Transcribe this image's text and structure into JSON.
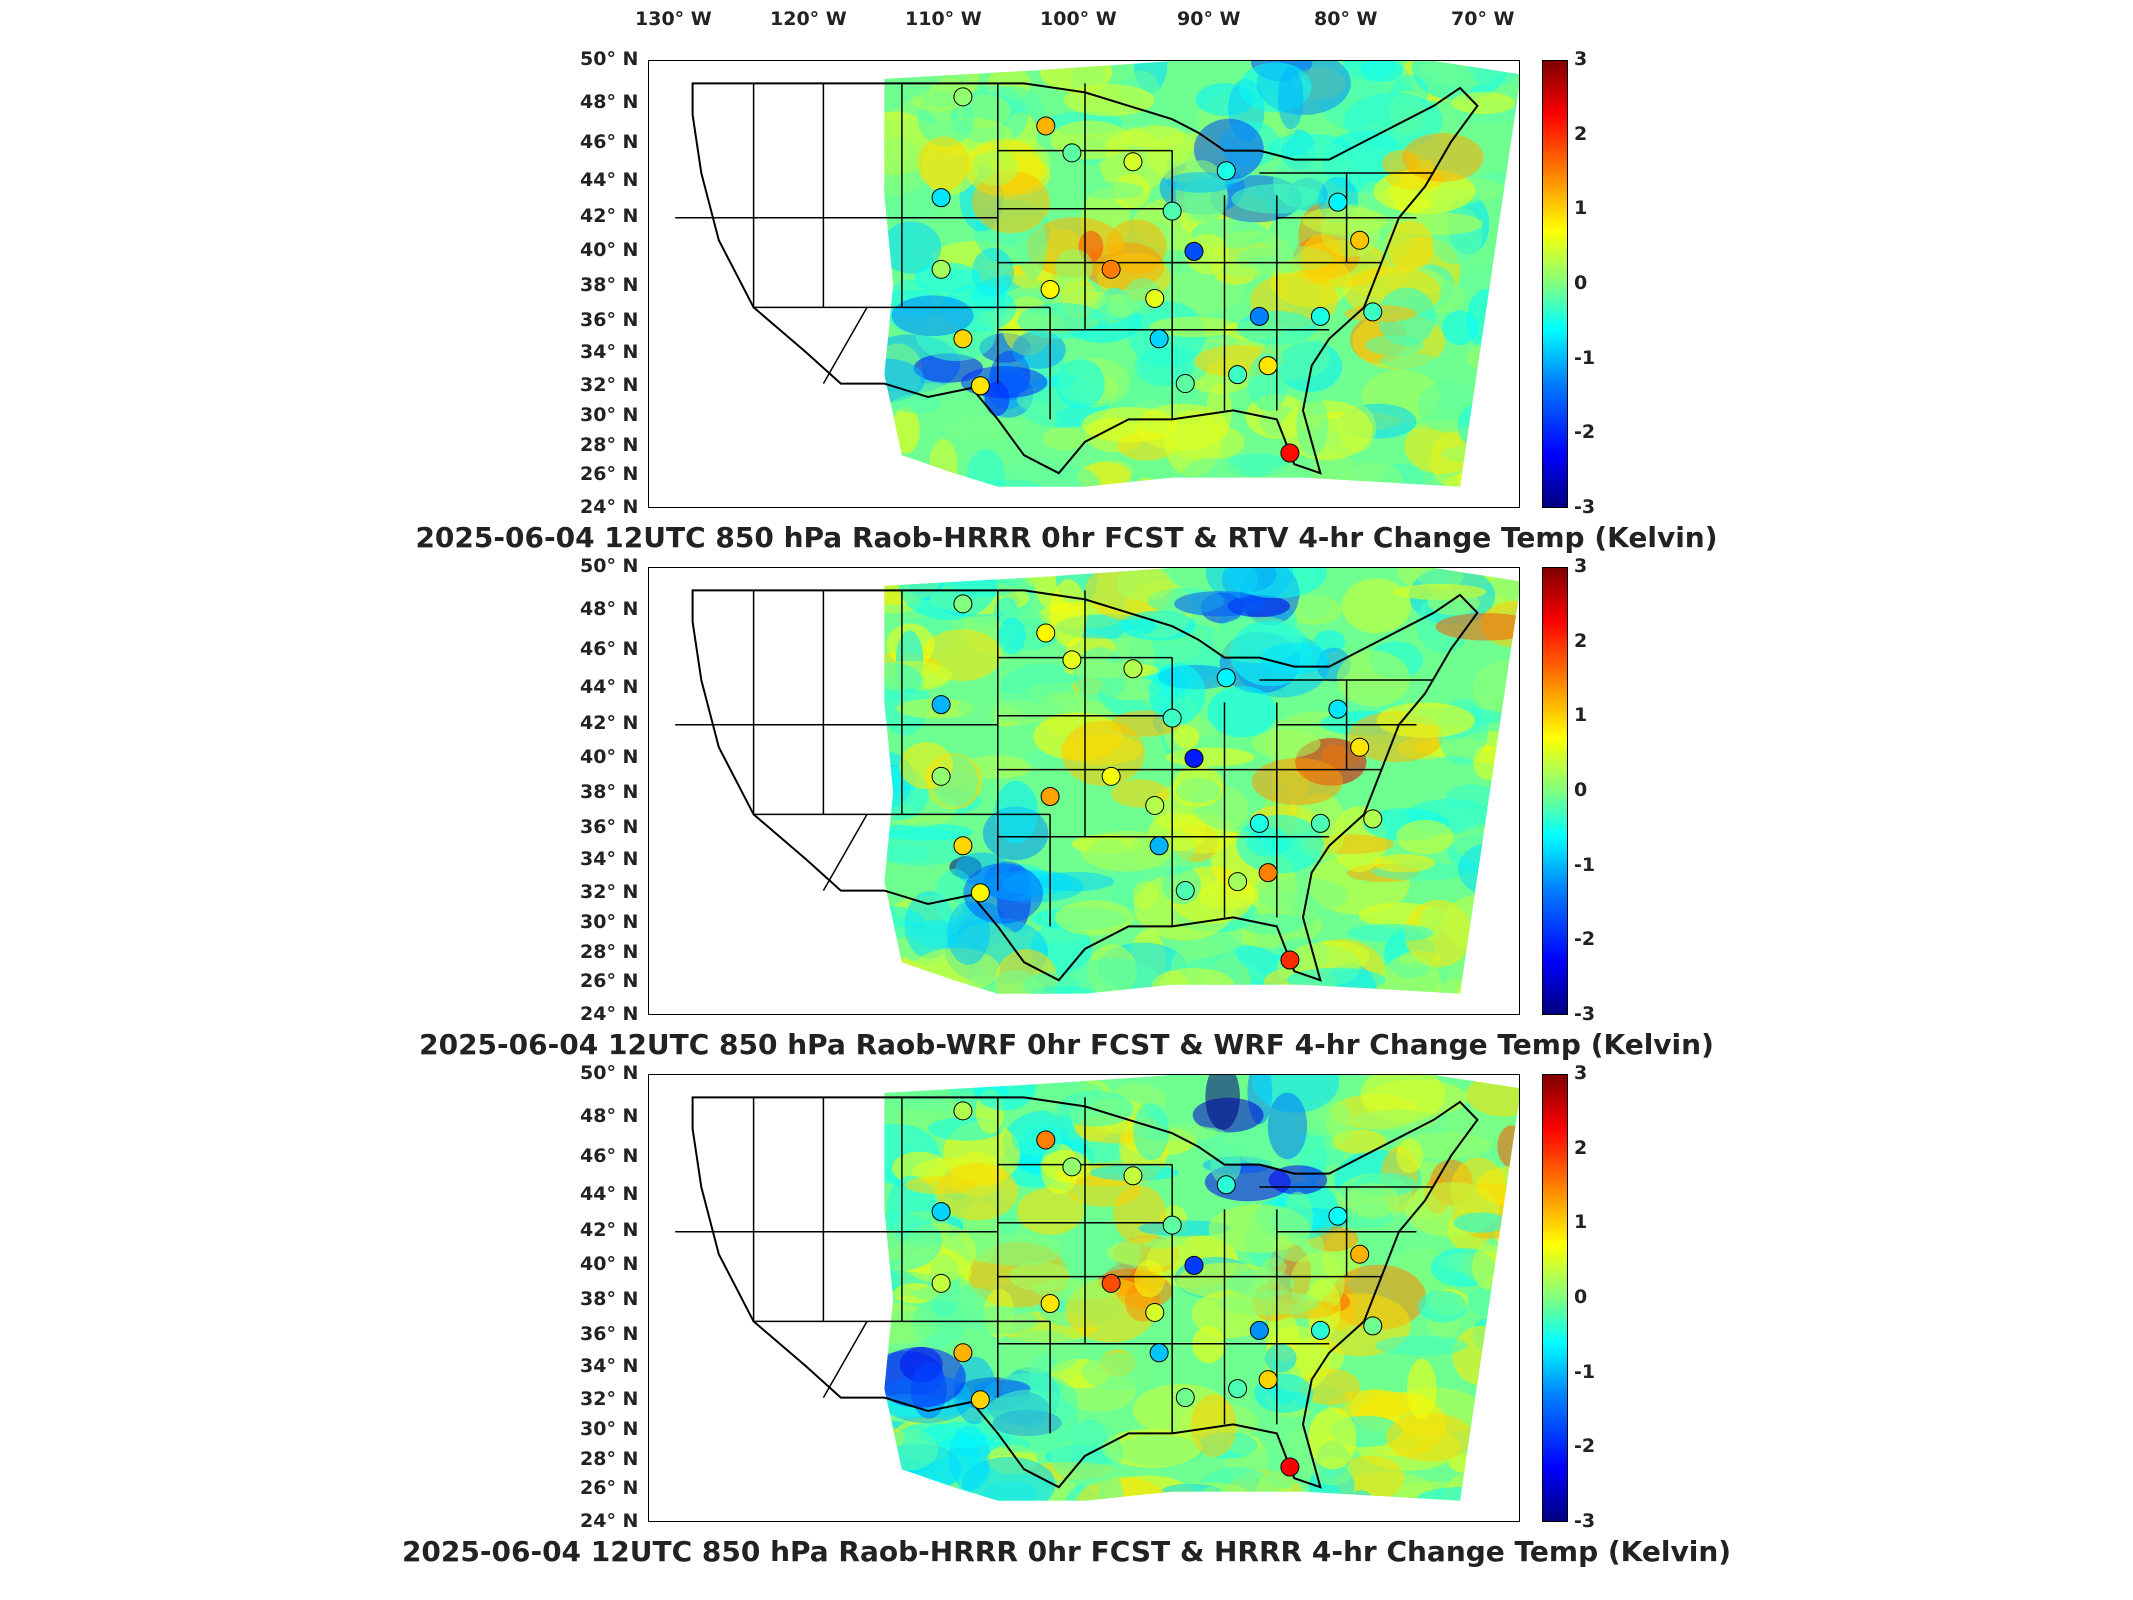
{
  "lon_labels": [
    "130° W",
    "120° W",
    "110° W",
    "100° W",
    "90° W",
    "80° W",
    "70° W"
  ],
  "lat_labels": [
    "50° N",
    "48° N",
    "46° N",
    "44° N",
    "42° N",
    "40° N",
    "38° N",
    "36° N",
    "34° N",
    "32° N",
    "30° N",
    "28° N",
    "26° N",
    "24° N"
  ],
  "colorbar": {
    "ticks": [
      "3",
      "2",
      "1",
      "0",
      "-1",
      "-2",
      "-3"
    ],
    "range": [
      -3,
      3
    ],
    "colors": [
      "#00007f",
      "#0000ff",
      "#0080ff",
      "#00ffff",
      "#80ff80",
      "#ffff00",
      "#ff8000",
      "#ff0000",
      "#7f0000"
    ]
  },
  "panels": [
    {
      "title": "2025-06-04 12UTC 850 hPa Raob-HRRR 0hr FCST & RTV 4-hr Change Temp (Kelvin)",
      "raob_values": [
        0.1,
        1.2,
        -0.2,
        -0.9,
        0.5,
        -0.6,
        0.2,
        0.8,
        1.5,
        -1.8,
        -0.3,
        -0.8,
        -1.5,
        -0.6,
        1.0,
        0.9,
        0.6,
        -1.0,
        -0.2,
        -0.4,
        0.9,
        1.1,
        -0.4,
        2.2
      ]
    },
    {
      "title": "2025-06-04 12UTC 850 hPa Raob-WRF 0hr FCST & WRF 4-hr Change Temp (Kelvin)",
      "raob_values": [
        0.0,
        0.8,
        0.6,
        -1.2,
        0.3,
        -0.8,
        0.1,
        1.3,
        0.7,
        -2.1,
        -0.4,
        -0.9,
        -0.6,
        -0.3,
        1.0,
        0.8,
        0.3,
        -1.2,
        -0.3,
        0.2,
        1.5,
        0.9,
        0.3,
        2.0
      ]
    },
    {
      "title": "2025-06-04 12UTC 850 hPa Raob-HRRR 0hr FCST & HRRR 4-hr Change Temp (Kelvin)",
      "raob_values": [
        0.3,
        1.5,
        0.1,
        -1.0,
        0.4,
        -0.5,
        0.4,
        0.9,
        1.8,
        -1.9,
        -0.2,
        -0.7,
        -1.4,
        -0.5,
        1.2,
        1.0,
        0.5,
        -1.1,
        -0.1,
        -0.3,
        1.0,
        1.2,
        -0.1,
        2.3
      ]
    }
  ]
}
